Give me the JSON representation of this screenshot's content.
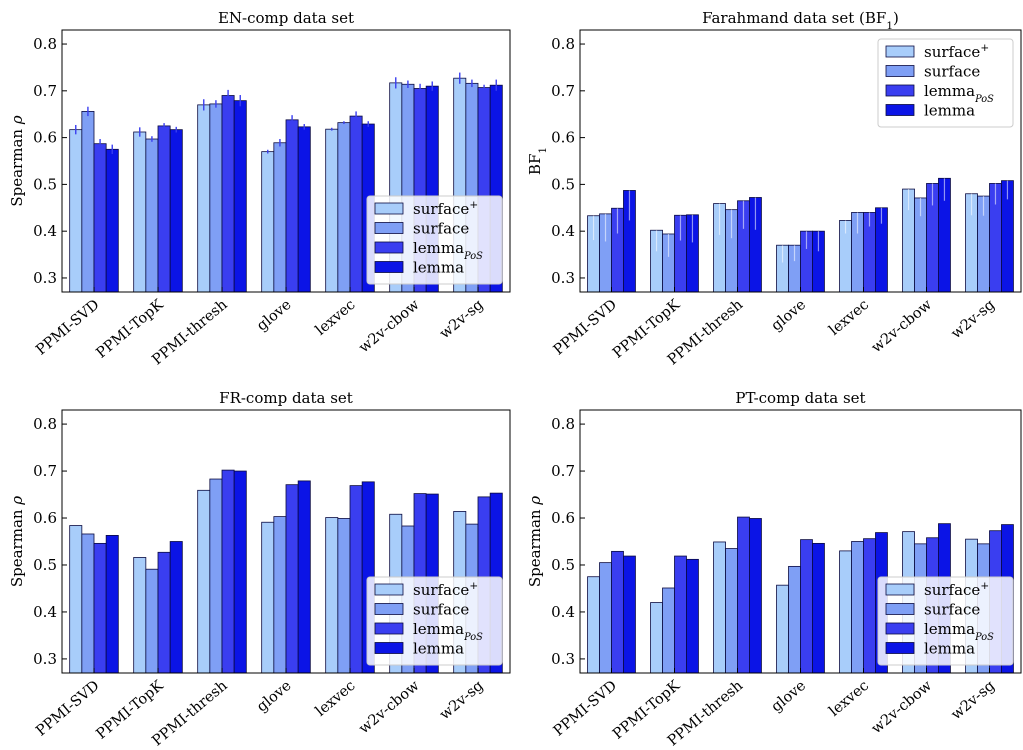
{
  "colors": [
    "#a8cdfa",
    "#7f9ff5",
    "#3a3ef0",
    "#0b14e6"
  ],
  "legend_labels": [
    "surface⁺",
    "surface",
    "lemma_PoS",
    "lemma"
  ],
  "chart_data": [
    {
      "type": "bar",
      "title": "EN-comp data set",
      "ylabel": "Spearman ρ",
      "ylim": [
        0.27,
        0.83
      ],
      "yticks": [
        0.3,
        0.4,
        0.5,
        0.6,
        0.7,
        0.8
      ],
      "legend_position": "lower-right",
      "categories": [
        "PPMI-SVD",
        "PPMI-TopK",
        "PPMI-thresh",
        "glove",
        "lexvec",
        "w2v-cbow",
        "w2v-sg"
      ],
      "series": [
        {
          "name": "surface⁺",
          "values": [
            0.617,
            0.612,
            0.67,
            0.57,
            0.618,
            0.717,
            0.727
          ],
          "err": [
            0.01,
            0.01,
            0.012,
            0.004,
            0.003,
            0.012,
            0.012
          ]
        },
        {
          "name": "surface",
          "values": [
            0.656,
            0.597,
            0.672,
            0.589,
            0.632,
            0.714,
            0.716
          ],
          "err": [
            0.01,
            0.006,
            0.008,
            0.008,
            0.003,
            0.008,
            0.008
          ]
        },
        {
          "name": "lemma_PoS",
          "values": [
            0.587,
            0.625,
            0.69,
            0.638,
            0.646,
            0.705,
            0.707
          ],
          "err": [
            0.01,
            0.006,
            0.012,
            0.01,
            0.01,
            0.01,
            0.006
          ]
        },
        {
          "name": "lemma",
          "values": [
            0.575,
            0.617,
            0.679,
            0.623,
            0.629,
            0.71,
            0.712
          ],
          "err": [
            0.01,
            0.006,
            0.012,
            0.006,
            0.006,
            0.01,
            0.012
          ]
        }
      ]
    },
    {
      "type": "bar",
      "title": "Farahmand data set (BF₁)",
      "ylabel": "BF₁",
      "ylim": [
        0.27,
        0.83
      ],
      "yticks": [
        0.3,
        0.4,
        0.5,
        0.6,
        0.7,
        0.8
      ],
      "legend_position": "upper-right",
      "categories": [
        "PPMI-SVD",
        "PPMI-TopK",
        "PPMI-thresh",
        "glove",
        "lexvec",
        "w2v-cbow",
        "w2v-sg"
      ],
      "series": [
        {
          "name": "surface⁺",
          "values": [
            0.433,
            0.402,
            0.459,
            0.37,
            0.423,
            0.49,
            0.48
          ],
          "low": [
            0.381,
            0.357,
            0.392,
            0.333,
            0.395,
            0.445,
            0.434
          ]
        },
        {
          "name": "surface",
          "values": [
            0.437,
            0.394,
            0.446,
            0.37,
            0.44,
            0.471,
            0.475
          ],
          "low": [
            0.378,
            0.345,
            0.385,
            0.336,
            0.395,
            0.432,
            0.433
          ]
        },
        {
          "name": "lemma_PoS",
          "values": [
            0.449,
            0.434,
            0.465,
            0.4,
            0.44,
            0.502,
            0.502
          ],
          "low": [
            0.395,
            0.38,
            0.405,
            0.362,
            0.41,
            0.455,
            0.457
          ]
        },
        {
          "name": "lemma",
          "values": [
            0.487,
            0.435,
            0.472,
            0.4,
            0.45,
            0.513,
            0.508
          ],
          "low": [
            0.423,
            0.376,
            0.403,
            0.357,
            0.416,
            0.465,
            0.468
          ]
        }
      ]
    },
    {
      "type": "bar",
      "title": "FR-comp data set",
      "ylabel": "Spearman ρ",
      "ylim": [
        0.27,
        0.83
      ],
      "yticks": [
        0.3,
        0.4,
        0.5,
        0.6,
        0.7,
        0.8
      ],
      "legend_position": "lower-right",
      "categories": [
        "PPMI-SVD",
        "PPMI-TopK",
        "PPMI-thresh",
        "glove",
        "lexvec",
        "w2v-cbow",
        "w2v-sg"
      ],
      "series": [
        {
          "name": "surface⁺",
          "values": [
            0.584,
            0.516,
            0.659,
            0.591,
            0.601,
            0.608,
            0.614
          ]
        },
        {
          "name": "surface",
          "values": [
            0.566,
            0.491,
            0.683,
            0.603,
            0.599,
            0.583,
            0.587
          ]
        },
        {
          "name": "lemma_PoS",
          "values": [
            0.546,
            0.527,
            0.702,
            0.671,
            0.669,
            0.652,
            0.645
          ]
        },
        {
          "name": "lemma",
          "values": [
            0.563,
            0.55,
            0.7,
            0.679,
            0.677,
            0.651,
            0.653
          ]
        }
      ]
    },
    {
      "type": "bar",
      "title": "PT-comp data set",
      "ylabel": "Spearman ρ",
      "ylim": [
        0.27,
        0.83
      ],
      "yticks": [
        0.3,
        0.4,
        0.5,
        0.6,
        0.7,
        0.8
      ],
      "legend_position": "lower-right",
      "categories": [
        "PPMI-SVD",
        "PPMI-TopK",
        "PPMI-thresh",
        "glove",
        "lexvec",
        "w2v-cbow",
        "w2v-sg"
      ],
      "series": [
        {
          "name": "surface⁺",
          "values": [
            0.475,
            0.42,
            0.549,
            0.457,
            0.53,
            0.571,
            0.555
          ]
        },
        {
          "name": "surface",
          "values": [
            0.505,
            0.451,
            0.535,
            0.497,
            0.55,
            0.545,
            0.545
          ]
        },
        {
          "name": "lemma_PoS",
          "values": [
            0.529,
            0.519,
            0.602,
            0.554,
            0.556,
            0.558,
            0.573
          ]
        },
        {
          "name": "lemma",
          "values": [
            0.519,
            0.512,
            0.599,
            0.546,
            0.569,
            0.588,
            0.586
          ]
        }
      ]
    }
  ]
}
